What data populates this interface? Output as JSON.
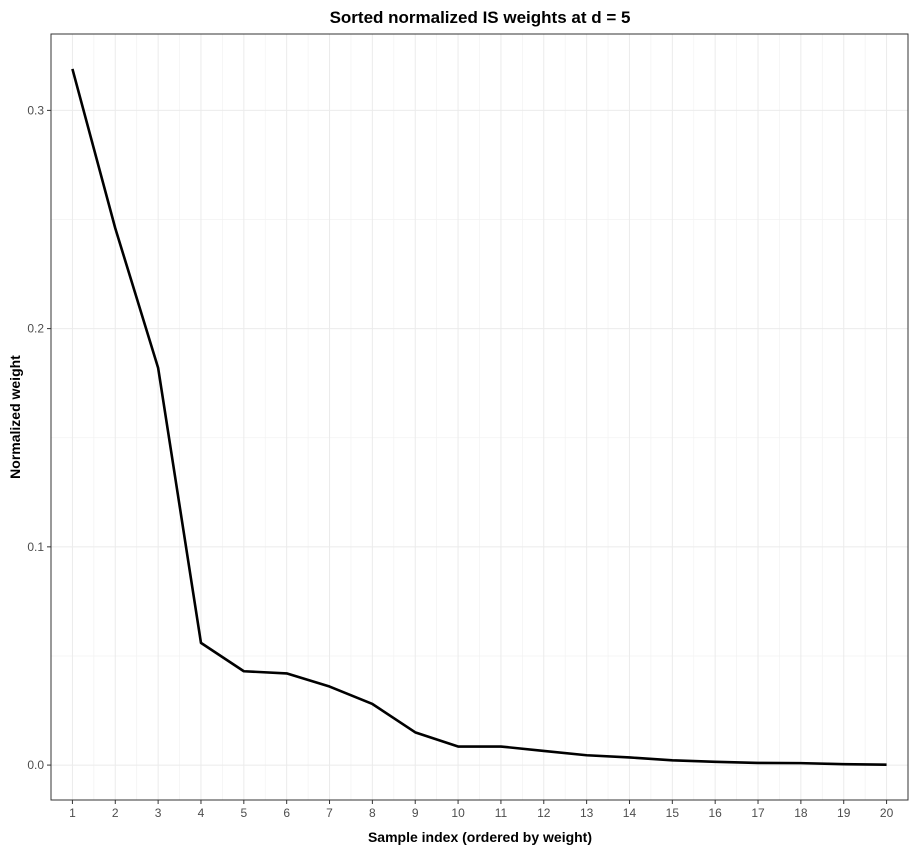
{
  "chart_data": {
    "type": "line",
    "title": "Sorted normalized IS weights at d = 5",
    "xlabel": "Sample index (ordered by weight)",
    "ylabel": "Normalized weight",
    "x": [
      1,
      2,
      3,
      4,
      5,
      6,
      7,
      8,
      9,
      10,
      11,
      12,
      13,
      14,
      15,
      16,
      17,
      18,
      19,
      20
    ],
    "x_tick_labels": [
      "1",
      "2",
      "3",
      "4",
      "5",
      "6",
      "7",
      "8",
      "9",
      "10",
      "11",
      "12",
      "13",
      "14",
      "15",
      "16",
      "17",
      "18",
      "19",
      "20"
    ],
    "series": [
      {
        "values": [
          0.319,
          0.246,
          0.182,
          0.056,
          0.043,
          0.042,
          0.036,
          0.028,
          0.015,
          0.0085,
          0.0085,
          0.0065,
          0.0045,
          0.0035,
          0.0022,
          0.0015,
          0.001,
          0.0009,
          0.0004,
          0.0002
        ]
      }
    ],
    "y_ticks": [
      0.0,
      0.1,
      0.2,
      0.3
    ],
    "y_tick_labels": [
      "0.0",
      "0.1",
      "0.2",
      "0.3"
    ],
    "xlim": [
      0.5,
      20.5
    ],
    "ylim": [
      -0.016,
      0.335
    ],
    "grid": true,
    "line_color": "#000000"
  }
}
